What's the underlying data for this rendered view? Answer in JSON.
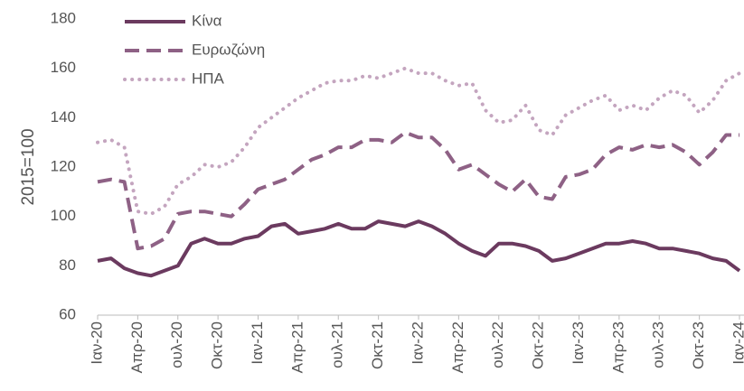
{
  "chart_data": {
    "type": "line",
    "ylabel": "2015=100",
    "categories": [
      "Ιαν-20",
      null,
      null,
      "Απρ-20",
      null,
      null,
      "ουλ-20",
      null,
      null,
      "Οκτ-20",
      null,
      null,
      "Ιαν-21",
      null,
      null,
      "Απρ-21",
      null,
      null,
      "ουλ-21",
      null,
      null,
      "Οκτ-21",
      null,
      null,
      "Ιαν-22",
      null,
      null,
      "Απρ-22",
      null,
      null,
      "ουλ-22",
      null,
      null,
      "Οκτ-22",
      null,
      null,
      "Ιαν-23",
      null,
      null,
      "Απρ-23",
      null,
      null,
      "ουλ-23",
      null,
      null,
      "Οκτ-23",
      null,
      null,
      "Ιαν-24"
    ],
    "series": [
      {
        "name": "Κίνα",
        "color": "#6b3a5f",
        "style": "solid",
        "values": [
          82,
          83,
          79,
          77,
          76,
          78,
          80,
          89,
          91,
          89,
          89,
          91,
          92,
          96,
          97,
          93,
          94,
          95,
          97,
          95,
          95,
          98,
          97,
          96,
          98,
          96,
          93,
          89,
          86,
          84,
          89,
          89,
          88,
          86,
          82,
          83,
          85,
          87,
          89,
          89,
          90,
          89,
          87,
          87,
          86,
          85,
          83,
          82,
          78
        ]
      },
      {
        "name": "Ευρωζώνη",
        "color": "#8e6185",
        "style": "dashed",
        "values": [
          114,
          115,
          114,
          87,
          88,
          91,
          101,
          102,
          102,
          101,
          100,
          105,
          111,
          113,
          115,
          119,
          123,
          125,
          128,
          128,
          131,
          131,
          130,
          134,
          132,
          132,
          127,
          119,
          121,
          117,
          113,
          110,
          115,
          108,
          107,
          116,
          117,
          119,
          125,
          128,
          127,
          129,
          128,
          129,
          126,
          121,
          126,
          133,
          133
        ]
      },
      {
        "name": "ΗΠΑ",
        "color": "#c4a5bf",
        "style": "dotted",
        "values": [
          130,
          131,
          128,
          102,
          101,
          104,
          113,
          116,
          121,
          120,
          122,
          128,
          136,
          140,
          144,
          148,
          151,
          154,
          155,
          155,
          157,
          156,
          158,
          160,
          158,
          158,
          155,
          153,
          154,
          143,
          138,
          139,
          145,
          135,
          133,
          141,
          144,
          147,
          149,
          143,
          145,
          143,
          148,
          151,
          149,
          142,
          147,
          155,
          158
        ]
      }
    ],
    "ylim": [
      60,
      180
    ],
    "yticks": [
      60,
      80,
      100,
      120,
      140,
      160,
      180
    ],
    "grid": false
  }
}
